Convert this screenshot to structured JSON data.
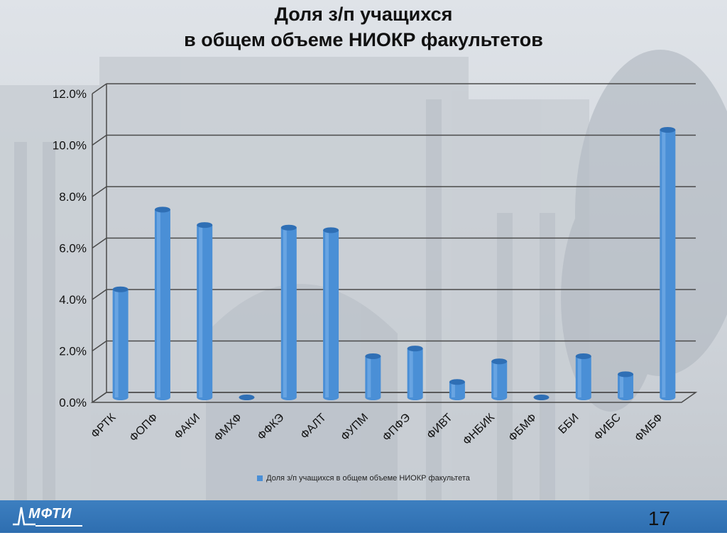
{
  "slide": {
    "title_line1": "Доля з/п учащихся",
    "title_line2": "в общем объеме НИОКР факультетов",
    "page_number": "17",
    "logo_text": "МФТИ"
  },
  "chart_data": {
    "type": "bar",
    "categories": [
      "ФРТК",
      "ФОПФ",
      "ФАКИ",
      "ФМХФ",
      "ФФКЭ",
      "ФАЛТ",
      "ФУПМ",
      "ФПФЭ",
      "ФИВТ",
      "ФНБИК",
      "ФБМФ",
      "ББИ",
      "ФИБС",
      "ФМБФ"
    ],
    "series": [
      {
        "name": "Доля з/п учащихся в общем объеме НИОКР факультета",
        "color": "#4a8fd6",
        "values": [
          4.2,
          7.3,
          6.7,
          0.0,
          6.6,
          6.5,
          1.6,
          1.9,
          0.6,
          1.4,
          0.0,
          1.6,
          0.9,
          10.4
        ]
      }
    ],
    "ylim": [
      0,
      12
    ],
    "yticks": [
      "0.0%",
      "2.0%",
      "4.0%",
      "6.0%",
      "8.0%",
      "10.0%",
      "12.0%"
    ],
    "grid": true,
    "legend_position": "bottom"
  }
}
